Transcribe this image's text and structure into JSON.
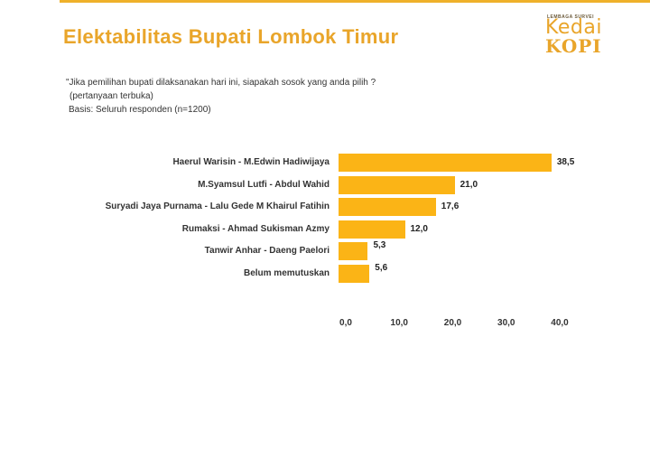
{
  "slide": {
    "title": "Elektabilitas Bupati Lombok Timur",
    "logo": {
      "small_text": "LEMBAGA SURVEI",
      "word1": "Kedai",
      "word2": "KOPI"
    },
    "question_line1": "\"Jika pemilihan bupati dilaksanakan hari ini, siapakah  sosok yang anda pilih ?",
    "question_line2": "(pertanyaan terbuka)",
    "basis": "Basis: Seluruh responden (n=1200)",
    "accent_color": "#efb12a",
    "bar_color": "#fbb416"
  },
  "chart_data": {
    "type": "bar",
    "orientation": "horizontal",
    "categories": [
      "Haerul Warisin - M.Edwin Hadiwijaya",
      "M.Syamsul Lutfi - Abdul Wahid",
      "Suryadi Jaya Purnama - Lalu Gede M Khairul Fatihin",
      "Rumaksi - Ahmad Sukisman Azmy",
      "Tanwir Anhar - Daeng Paelori",
      "Belum memutuskan"
    ],
    "values": [
      38.5,
      21.0,
      17.6,
      12.0,
      5.3,
      5.6
    ],
    "value_labels": [
      "38,5",
      "21,0",
      "17,6",
      "12,0",
      "5,3",
      "5,6"
    ],
    "xlim": [
      0,
      40
    ],
    "tick_labels": [
      "0,0",
      "10,0",
      "20,0",
      "30,0",
      "40,0"
    ],
    "title": "",
    "xlabel": "",
    "ylabel": "",
    "grid": false,
    "legend": "none"
  }
}
